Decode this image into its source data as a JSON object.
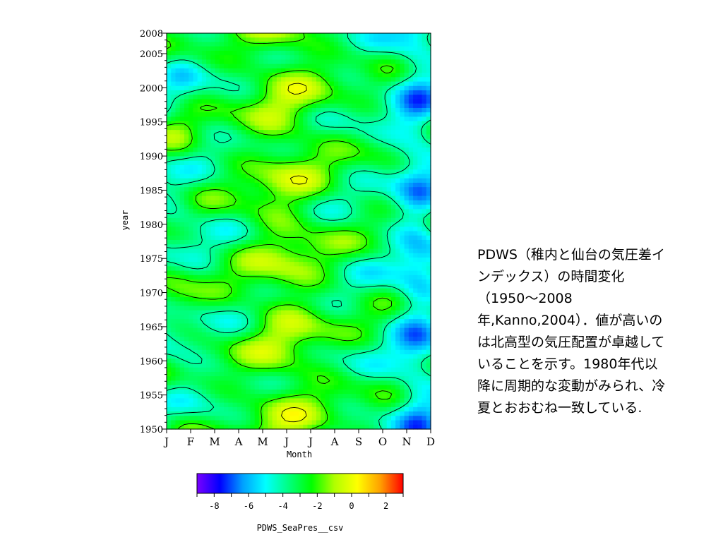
{
  "chart_data": {
    "type": "heatmap",
    "title": "",
    "xlabel": "Month",
    "ylabel": "year",
    "x_categories": [
      "J",
      "F",
      "M",
      "A",
      "M",
      "J",
      "J",
      "A",
      "S",
      "O",
      "N",
      "D"
    ],
    "y_range": [
      1950,
      2008
    ],
    "y_ticks": [
      1950,
      1955,
      1960,
      1965,
      1970,
      1975,
      1980,
      1985,
      1990,
      1995,
      2000,
      2005,
      2008
    ],
    "colorbar": {
      "label": "PDWS_SeaPres__csv",
      "range": [
        -9,
        3
      ],
      "ticks": [
        -8,
        -6,
        -4,
        -2,
        0,
        2
      ],
      "colors": [
        "#7a00ff",
        "#0000ff",
        "#00a0ff",
        "#00ffff",
        "#00ff80",
        "#00ff00",
        "#b0ff00",
        "#ffff00",
        "#ffa000",
        "#ff0000"
      ]
    },
    "contour_interval": 2,
    "grid": false
  },
  "caption": {
    "text": "PDWS（稚内と仙台の気圧差インデックス）の時間変化（1950～2008年,Kanno,2004）．値が高いのは北高型の気圧配置が卓越していることを示す。1980年代以降に周期的な変動がみられ、冷夏とおおむね一致している."
  }
}
